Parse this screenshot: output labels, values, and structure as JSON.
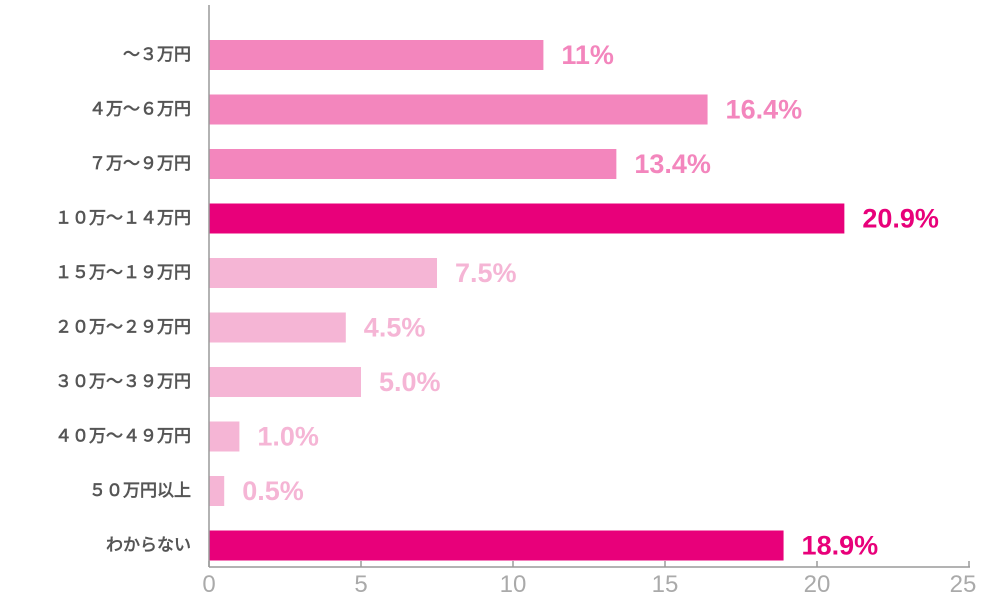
{
  "chart_data": {
    "type": "bar",
    "orientation": "horizontal",
    "categories": [
      "～３万円",
      "４万～６万円",
      "７万～９万円",
      "１０万～１４万円",
      "１５万～１９万円",
      "２０万～２９万円",
      "３０万～３９万円",
      "４０万～４９万円",
      "５０万円以上",
      "わからない"
    ],
    "values": [
      11,
      16.4,
      13.4,
      20.9,
      7.5,
      4.5,
      5.0,
      1.0,
      0.5,
      18.9
    ],
    "value_labels": [
      "11%",
      "16.4%",
      "13.4%",
      "20.9%",
      "7.5%",
      "4.5%",
      "5.0%",
      "1.0%",
      "0.5%",
      "18.9%"
    ],
    "colors": [
      "#f386bd",
      "#f386bd",
      "#f386bd",
      "#e8007a",
      "#f5b5d5",
      "#f5b5d5",
      "#f5b5d5",
      "#f5b5d5",
      "#f5b5d5",
      "#e8007a"
    ],
    "xlim": [
      0,
      25
    ],
    "xticks": [
      "0",
      "5",
      "10",
      "15",
      "20",
      "25"
    ],
    "title": "",
    "xlabel": "",
    "ylabel": "",
    "grid": false,
    "legend": "none"
  }
}
